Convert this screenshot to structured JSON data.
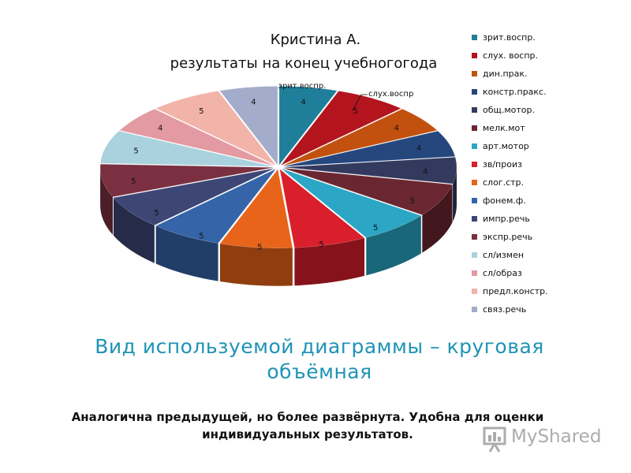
{
  "chart_data": {
    "type": "pie",
    "style": "3d-exploded",
    "title": "Кристина А.",
    "subtitle": "результаты на конец учебногогода",
    "legend_position": "right",
    "slices": [
      {
        "label": "зрит.воспр.",
        "value": 4,
        "color": "#1f7f9a"
      },
      {
        "label": "слух. воспр.",
        "value": 5,
        "color": "#b3141d"
      },
      {
        "label": "дин.прак.",
        "value": 4,
        "color": "#c2510f"
      },
      {
        "label": "констр.пракс.",
        "value": 4,
        "color": "#25477e"
      },
      {
        "label": "общ.мотор.",
        "value": 4,
        "color": "#343a5e"
      },
      {
        "label": "мелк.мот",
        "value": 5,
        "color": "#6a2731"
      },
      {
        "label": "арт.мотор",
        "value": 5,
        "color": "#2ba6c5"
      },
      {
        "label": "зв/произ",
        "value": 5,
        "color": "#d81f2b"
      },
      {
        "label": "слог.стр.",
        "value": 5,
        "color": "#e8641a"
      },
      {
        "label": "фонем.ф.",
        "value": 5,
        "color": "#3564a8"
      },
      {
        "label": "импр.речь",
        "value": 5,
        "color": "#3d4675"
      },
      {
        "label": "экспр.речь",
        "value": 5,
        "color": "#7a3040"
      },
      {
        "label": "сл/измен",
        "value": 5,
        "color": "#a9d2de"
      },
      {
        "label": "сл/образ",
        "value": 4,
        "color": "#e49aa2"
      },
      {
        "label": "предл.констр.",
        "value": 5,
        "color": "#f2b3a8"
      },
      {
        "label": "связ.речь",
        "value": 4,
        "color": "#a3acca"
      }
    ],
    "data_labels": [
      {
        "category": "зрит.воспр.",
        "value": "4"
      },
      {
        "category": "слух.воспр",
        "value": "5"
      }
    ]
  },
  "heading": "Вид используемой диаграммы – круговая объёмная",
  "description": "Аналогична предыдущей, но более развёрнута. Удобна для оценки индивидуальных результатов.",
  "watermark": "MyShared"
}
